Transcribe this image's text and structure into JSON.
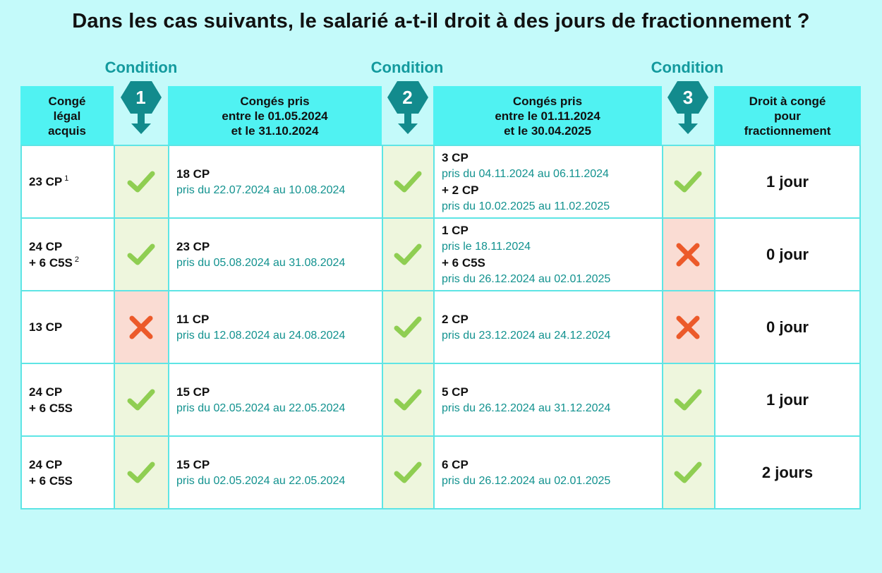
{
  "title": "Dans les cas suivants, le salarié a-t-il droit à des jours de fractionnement ?",
  "conditions": [
    {
      "label": "Condition",
      "number": "1"
    },
    {
      "label": "Condition",
      "number": "2"
    },
    {
      "label": "Condition",
      "number": "3"
    }
  ],
  "headers": {
    "acquis": "Congé\nlégal\nacquis",
    "period1": "Congés pris\nentre le 01.05.2024\net le 31.10.2024",
    "period2": "Congés pris\nentre le 01.11.2024\net le 30.04.2025",
    "droit": "Droit à congé\npour\nfractionnement"
  },
  "colors": {
    "background": "#c4fafa",
    "header": "#50f2f2",
    "badge": "#128b8d",
    "accent_text": "#12928f",
    "ok": "#8fce52",
    "ko": "#ec5a2a"
  },
  "rows": [
    {
      "acquis_line1": "23 CP",
      "acquis_line2": "",
      "footnote": "1",
      "cond1": "ok",
      "p1_cp": "18 CP",
      "p1_dates": "pris du 22.07.2024 au 10.08.2024",
      "cond2": "ok",
      "p2": [
        {
          "cp": "3 CP",
          "dates": "pris du 04.11.2024 au 06.11.2024"
        },
        {
          "cp": "+ 2 CP",
          "dates": "pris du 10.02.2025 au 11.02.2025"
        }
      ],
      "cond3": "ok",
      "result": "1 jour"
    },
    {
      "acquis_line1": "24 CP",
      "acquis_line2": "+ 6 C5S",
      "footnote": "2",
      "cond1": "ok",
      "p1_cp": "23 CP",
      "p1_dates": "pris du 05.08.2024 au 31.08.2024",
      "cond2": "ok",
      "p2": [
        {
          "cp": "1 CP",
          "dates": "pris le 18.11.2024"
        },
        {
          "cp": "+ 6 C5S",
          "dates": "pris du 26.12.2024 au 02.01.2025"
        }
      ],
      "cond3": "ko",
      "result": "0 jour"
    },
    {
      "acquis_line1": "13 CP",
      "acquis_line2": "",
      "footnote": "",
      "cond1": "ko",
      "p1_cp": "11 CP",
      "p1_dates": "pris du 12.08.2024 au 24.08.2024",
      "cond2": "ok",
      "p2": [
        {
          "cp": "2 CP",
          "dates": "pris du 23.12.2024 au 24.12.2024"
        }
      ],
      "cond3": "ko",
      "result": "0 jour"
    },
    {
      "acquis_line1": "24 CP",
      "acquis_line2": "+ 6 C5S",
      "footnote": "",
      "cond1": "ok",
      "p1_cp": "15 CP",
      "p1_dates": "pris du 02.05.2024 au 22.05.2024",
      "cond2": "ok",
      "p2": [
        {
          "cp": "5 CP",
          "dates": "pris du 26.12.2024 au 31.12.2024"
        }
      ],
      "cond3": "ok",
      "result": "1 jour"
    },
    {
      "acquis_line1": "24 CP",
      "acquis_line2": "+ 6 C5S",
      "footnote": "",
      "cond1": "ok",
      "p1_cp": "15 CP",
      "p1_dates": "pris du 02.05.2024 au 22.05.2024",
      "cond2": "ok",
      "p2": [
        {
          "cp": "6 CP",
          "dates": "pris du 26.12.2024 au 02.01.2025"
        }
      ],
      "cond3": "ok",
      "result": "2 jours"
    }
  ]
}
